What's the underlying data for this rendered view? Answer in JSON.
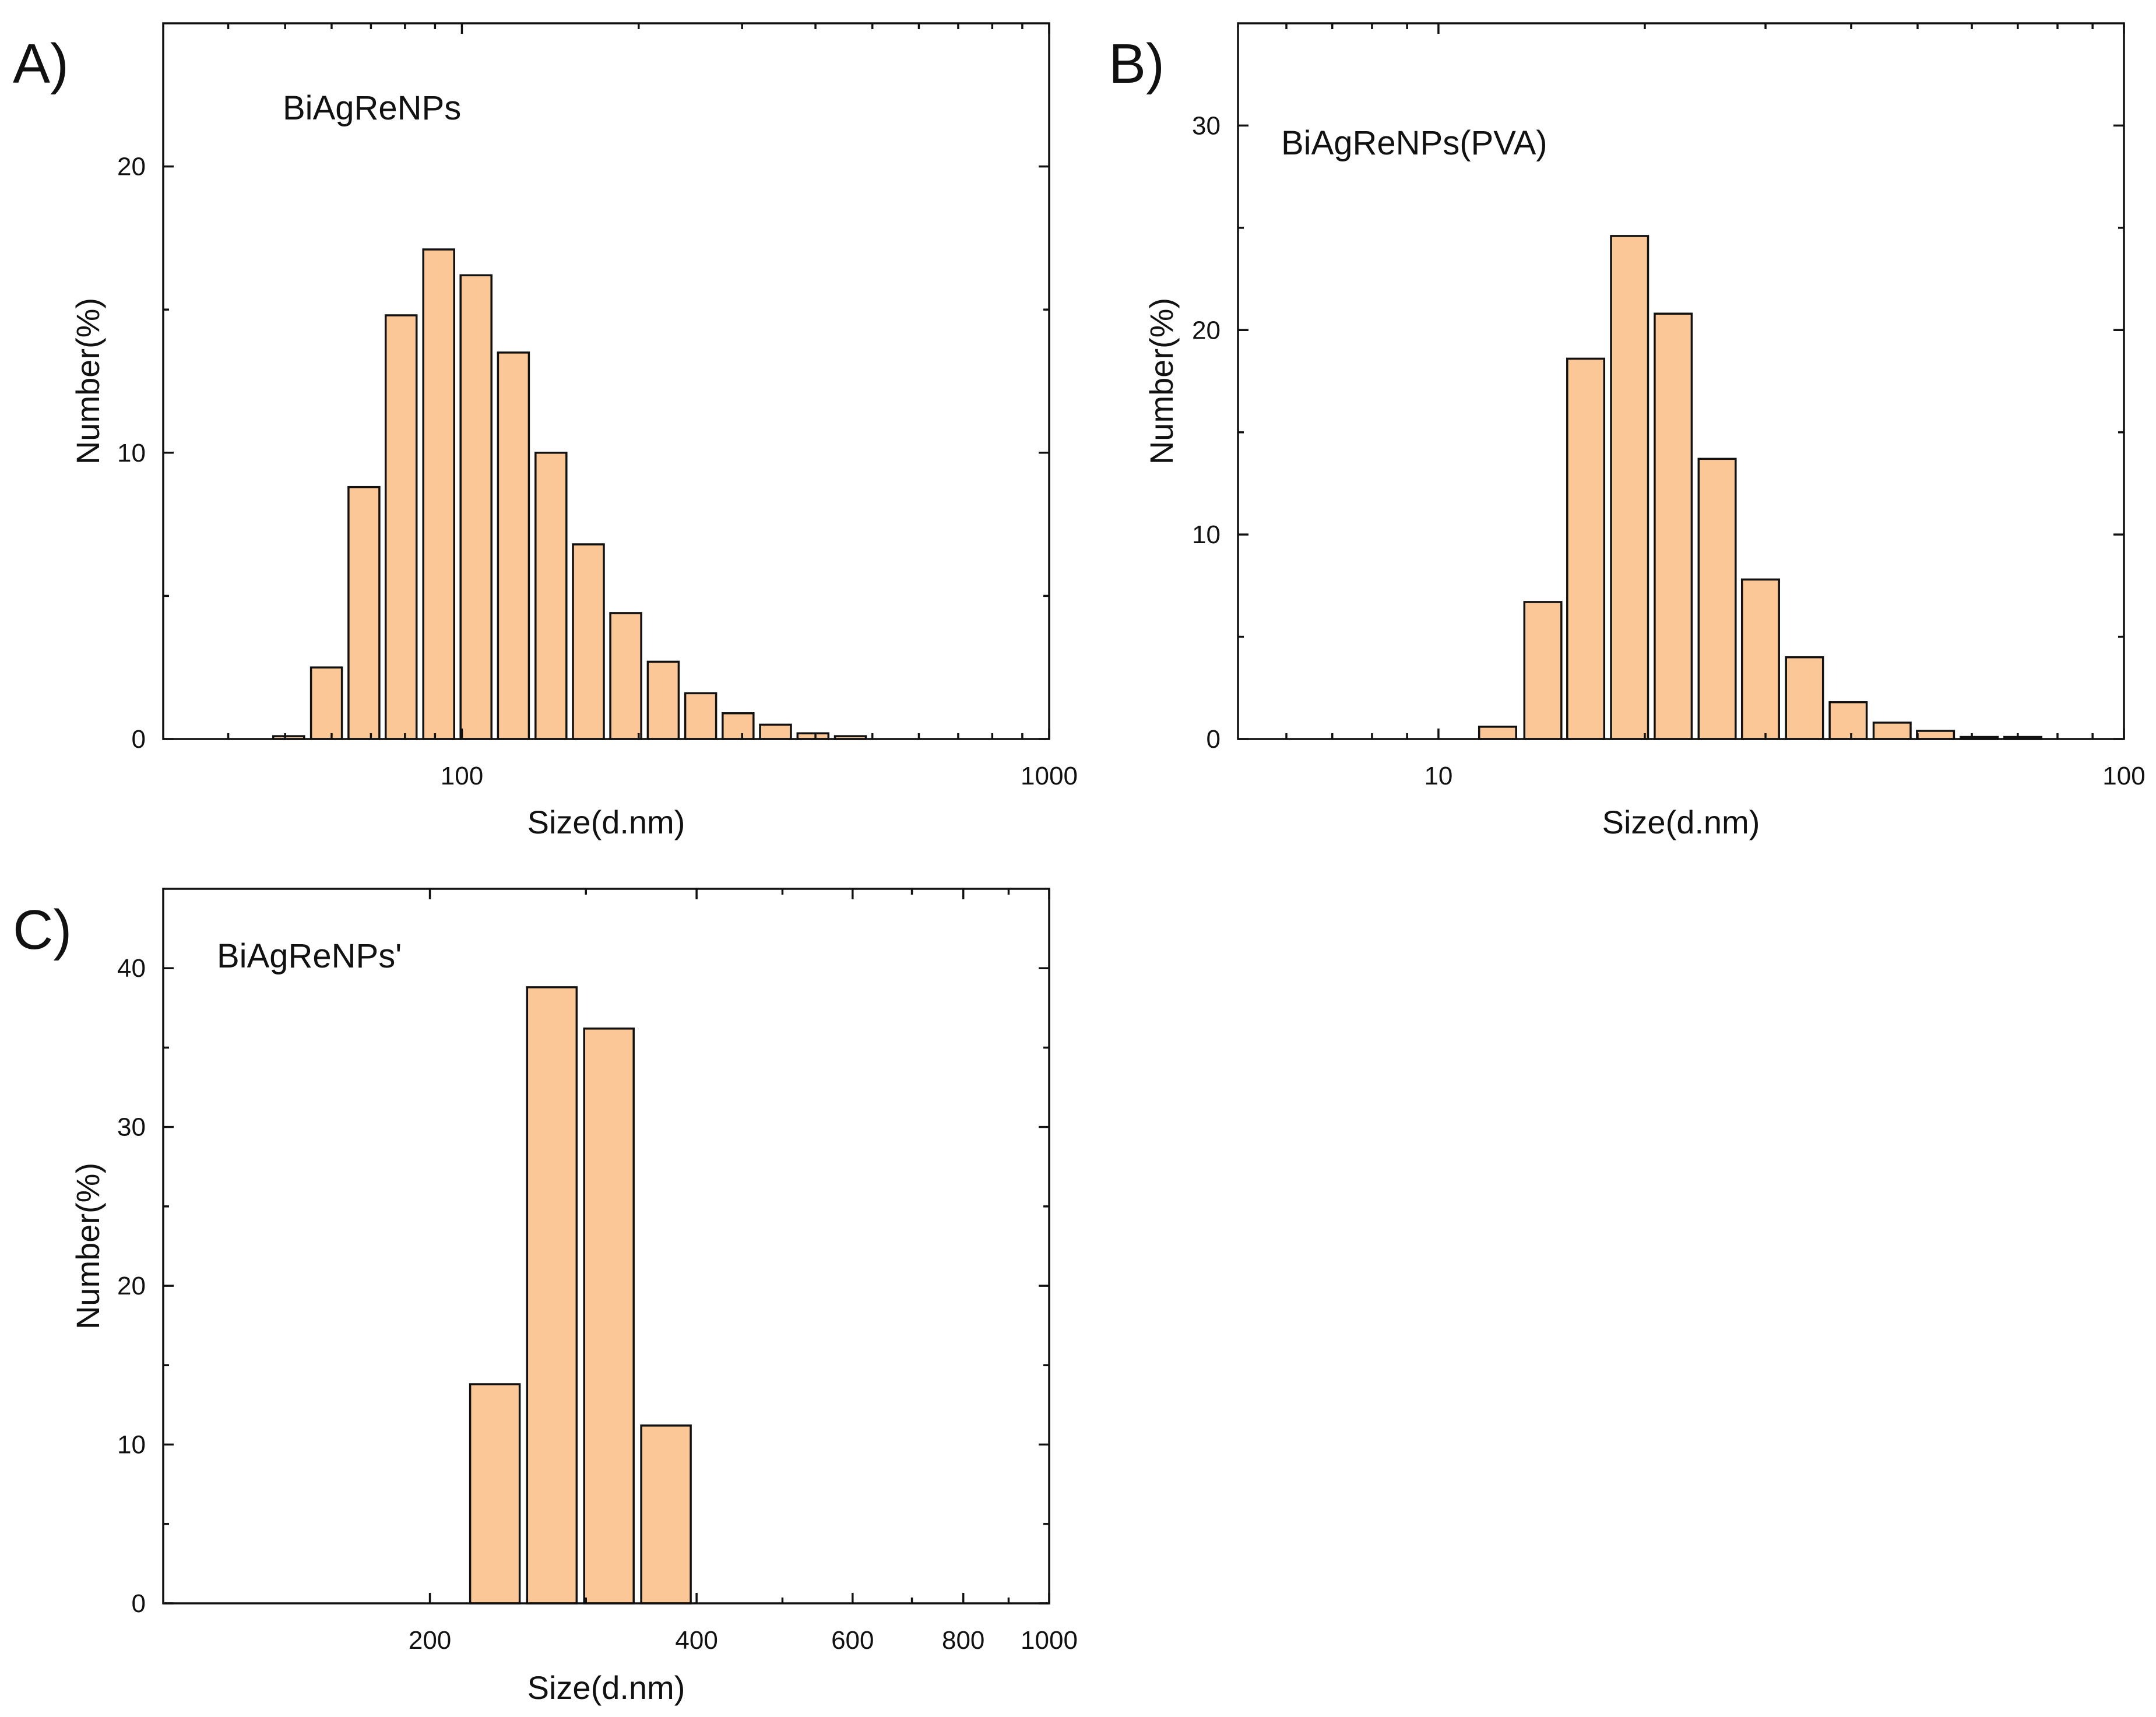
{
  "colors": {
    "bar_fill": "#FCC796",
    "bar_stroke": "#111111",
    "axis": "#111111"
  },
  "chart_data": [
    {
      "panel": "A)",
      "type": "bar",
      "title": "",
      "series_label": "BiAgReNPs",
      "xlabel": "Size(d.nm)",
      "ylabel": "Number(%)",
      "xscale": "log",
      "xlim": [
        31,
        1000
      ],
      "ylim": [
        0,
        25
      ],
      "xticks": [
        100,
        1000
      ],
      "xticklabels": [
        "100",
        "1000"
      ],
      "yticks": [
        0,
        10,
        20
      ],
      "yticklabels": [
        "0",
        "10",
        "20"
      ],
      "bin_width_log": 0.0625,
      "x": [
        50.7,
        58.8,
        68.1,
        78.8,
        91.3,
        105.7,
        122.4,
        141.8,
        164.2,
        190.1,
        220.2,
        255.0,
        295.3,
        342.0,
        396.1,
        458.7
      ],
      "values": [
        0.1,
        2.5,
        8.8,
        14.8,
        17.1,
        16.2,
        13.5,
        10.0,
        6.8,
        4.4,
        2.7,
        1.6,
        0.9,
        0.5,
        0.2,
        0.1
      ]
    },
    {
      "panel": "B)",
      "type": "bar",
      "title": "",
      "series_label": "BiAgReNPs(PVA)",
      "xlabel": "Size(d.nm)",
      "ylabel": "Number(%)",
      "xscale": "log",
      "xlim": [
        5.1,
        100
      ],
      "ylim": [
        0,
        35
      ],
      "xticks": [
        10,
        100
      ],
      "xticklabels": [
        "10",
        "100"
      ],
      "yticks": [
        0,
        10,
        20,
        30
      ],
      "yticklabels": [
        "0",
        "10",
        "20",
        "30"
      ],
      "bin_width_log": 0.0625,
      "x": [
        12.2,
        14.2,
        16.4,
        19.0,
        22.0,
        25.5,
        29.5,
        34.2,
        39.6,
        45.9,
        53.1,
        61.5,
        71.2
      ],
      "values": [
        0.6,
        6.7,
        18.6,
        24.6,
        20.8,
        13.7,
        7.8,
        4.0,
        1.8,
        0.8,
        0.4,
        0.1,
        0.1
      ]
    },
    {
      "panel": "C)",
      "type": "bar",
      "title": "",
      "series_label": "BiAgReNPs'",
      "xlabel": "Size(d.nm)",
      "ylabel": "Number(%)",
      "xscale": "log",
      "xlim": [
        100,
        1000
      ],
      "ylim": [
        0,
        45
      ],
      "xticks": [
        200,
        400,
        600,
        800,
        1000
      ],
      "xticklabels": [
        "200",
        "400",
        "600",
        "800",
        "1000"
      ],
      "yticks": [
        0,
        10,
        20,
        30,
        40
      ],
      "yticklabels": [
        "0",
        "10",
        "20",
        "30",
        "40"
      ],
      "bin_width_log": 0.0625,
      "x": [
        236.8,
        274.6,
        318.5,
        369.4
      ],
      "values": [
        13.8,
        38.8,
        36.2,
        11.2
      ]
    }
  ]
}
